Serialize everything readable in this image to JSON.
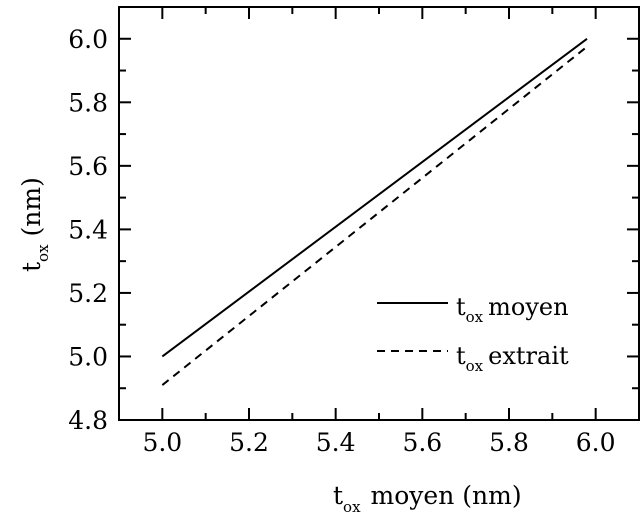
{
  "chart_data": {
    "type": "line",
    "xlabel": {
      "main": "t",
      "sub": "ox",
      "rest": "moyen (nm)"
    },
    "ylabel": {
      "main": "t",
      "sub": "ox",
      "rest": "(nm)"
    },
    "xlim": [
      4.9,
      6.1
    ],
    "ylim": [
      4.8,
      6.1
    ],
    "xticks": [
      "5.0",
      "5.2",
      "5.4",
      "5.6",
      "5.8",
      "6.0"
    ],
    "yticks": [
      "4.8",
      "5.0",
      "5.2",
      "5.4",
      "5.6",
      "5.8",
      "6.0"
    ],
    "grid": false,
    "legend_position": "lower-right",
    "series": [
      {
        "name": {
          "main": "t",
          "sub": "ox",
          "rest": "moyen"
        },
        "style": "solid",
        "x": [
          5.0,
          5.98
        ],
        "y": [
          5.0,
          6.0
        ]
      },
      {
        "name": {
          "main": "t",
          "sub": "ox",
          "rest": "extrait"
        },
        "style": "dashed",
        "x": [
          5.0,
          5.98
        ],
        "y": [
          4.91,
          5.975
        ]
      }
    ]
  }
}
